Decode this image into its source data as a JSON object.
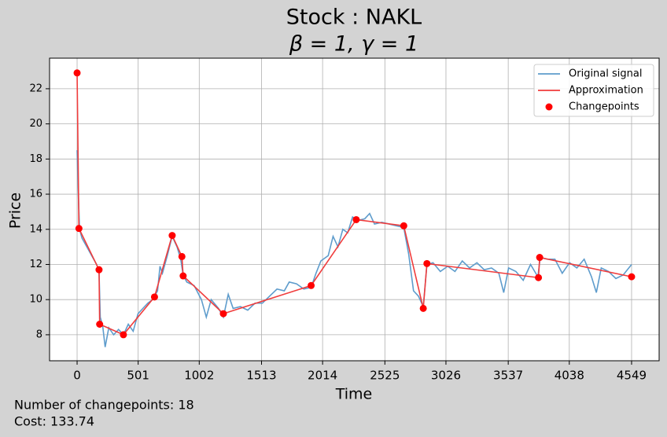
{
  "chart_data": {
    "type": "line",
    "title": "Stock : NAKL",
    "subtitle": "β = 1, γ = 1",
    "x_label": "Time",
    "y_label": "Price",
    "annotations": [
      "Number of changepoints: 18",
      "Cost: 133.74"
    ],
    "xlim": [
      -226,
      4775
    ],
    "ylim": [
      6.52,
      23.74
    ],
    "xticks": [
      0,
      501,
      1002,
      1513,
      2014,
      2525,
      3026,
      3537,
      4038,
      4549
    ],
    "yticks": [
      8,
      10,
      12,
      14,
      16,
      18,
      20,
      22
    ],
    "grid": true,
    "legend": "upper right",
    "series": [
      {
        "name": "Original signal",
        "kind": "line",
        "color": "#5e9ccc",
        "x": [
          0,
          10,
          20,
          40,
          80,
          120,
          160,
          180,
          190,
          210,
          230,
          260,
          300,
          340,
          380,
          420,
          460,
          500,
          540,
          580,
          620,
          660,
          680,
          700,
          740,
          780,
          820,
          850,
          870,
          900,
          960,
          1020,
          1060,
          1100,
          1160,
          1200,
          1240,
          1280,
          1340,
          1400,
          1460,
          1520,
          1580,
          1640,
          1700,
          1740,
          1800,
          1860,
          1920,
          1960,
          2000,
          2060,
          2100,
          2140,
          2180,
          2220,
          2260,
          2300,
          2360,
          2400,
          2440,
          2500,
          2560,
          2620,
          2680,
          2720,
          2760,
          2800,
          2840,
          2870,
          2920,
          2980,
          3040,
          3100,
          3160,
          3220,
          3280,
          3340,
          3400,
          3460,
          3500,
          3540,
          3600,
          3660,
          3720,
          3780,
          3800,
          3860,
          3920,
          3980,
          4040,
          4100,
          4160,
          4220,
          4260,
          4300,
          4360,
          4420,
          4480,
          4549
        ],
        "values": [
          18.5,
          16,
          14,
          13.5,
          13.0,
          12.5,
          12.0,
          11.6,
          9.0,
          8.5,
          7.3,
          8.4,
          8.0,
          8.3,
          8.0,
          8.6,
          8.2,
          9.2,
          9.5,
          9.8,
          10.0,
          10.5,
          11.9,
          11.5,
          12.5,
          13.6,
          13.0,
          12.3,
          11.4,
          11.0,
          10.8,
          10.0,
          9.0,
          10.0,
          9.5,
          9.0,
          10.3,
          9.5,
          9.6,
          9.4,
          9.8,
          9.8,
          10.2,
          10.6,
          10.5,
          11.0,
          10.9,
          10.6,
          10.7,
          11.5,
          12.2,
          12.5,
          13.6,
          13.0,
          14.0,
          13.8,
          14.7,
          14.5,
          14.6,
          14.9,
          14.3,
          14.4,
          14.3,
          14.2,
          14.1,
          12.6,
          10.5,
          10.2,
          9.6,
          12.0,
          12.1,
          11.6,
          11.9,
          11.6,
          12.2,
          11.8,
          12.1,
          11.7,
          11.8,
          11.5,
          10.4,
          11.8,
          11.6,
          11.1,
          12.0,
          11.3,
          12.4,
          12.3,
          12.3,
          11.5,
          12.1,
          11.8,
          12.3,
          11.3,
          10.4,
          11.8,
          11.6,
          11.2,
          11.4,
          12.0
        ]
      },
      {
        "name": "Approximation",
        "kind": "line",
        "color": "#f03c3c",
        "x": [
          0,
          15,
          180,
          185,
          380,
          635,
          780,
          860,
          870,
          1200,
          1920,
          2290,
          2680,
          2840,
          2870,
          3785,
          3795,
          4549
        ],
        "values": [
          22.9,
          14.05,
          11.7,
          8.6,
          8.0,
          10.15,
          13.65,
          12.45,
          11.35,
          9.2,
          10.8,
          14.55,
          14.2,
          9.5,
          12.05,
          11.25,
          12.4,
          11.3
        ]
      },
      {
        "name": "Changepoints",
        "kind": "scatter",
        "color": "#ff0000",
        "x": [
          0,
          15,
          180,
          185,
          380,
          635,
          780,
          860,
          870,
          1200,
          1920,
          2290,
          2680,
          2840,
          2870,
          3785,
          3795,
          4549
        ],
        "values": [
          22.9,
          14.05,
          11.7,
          8.6,
          8.0,
          10.15,
          13.65,
          12.45,
          11.35,
          9.2,
          10.8,
          14.55,
          14.2,
          9.5,
          12.05,
          11.25,
          12.4,
          11.3
        ]
      }
    ]
  }
}
